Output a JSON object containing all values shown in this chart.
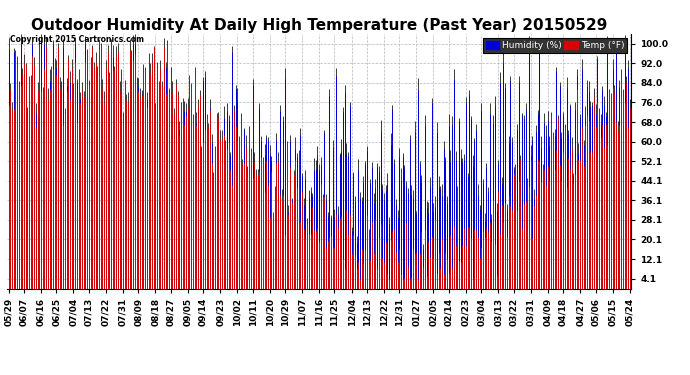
{
  "title": "Outdoor Humidity At Daily High Temperature (Past Year) 20150529",
  "copyright": "Copyright 2015 Cartronics.com",
  "legend_humidity": "Humidity (%)",
  "legend_temp": "Temp (°F)",
  "yticks": [
    4.1,
    12.1,
    20.1,
    28.1,
    36.1,
    44.1,
    52.1,
    60.0,
    68.0,
    76.0,
    84.0,
    92.0,
    100.0
  ],
  "ymin": 0,
  "ymax": 104,
  "background_color": "#ffffff",
  "plot_bg_color": "#ffffff",
  "grid_color": "#b0b0b0",
  "humidity_color": "#0000dd",
  "temp_color": "#dd0000",
  "bar_color": "#1a1a1a",
  "title_fontsize": 11,
  "tick_fontsize": 6.5,
  "figsize": [
    6.9,
    3.75
  ],
  "dpi": 100,
  "x_labels": [
    "05/29",
    "06/07",
    "06/16",
    "06/25",
    "07/04",
    "07/13",
    "07/22",
    "07/31",
    "08/09",
    "08/18",
    "08/27",
    "09/05",
    "09/14",
    "09/23",
    "10/02",
    "10/11",
    "10/20",
    "10/29",
    "11/07",
    "11/16",
    "11/25",
    "12/04",
    "12/13",
    "12/22",
    "12/31",
    "01/27",
    "02/05",
    "02/14",
    "02/23",
    "03/04",
    "03/13",
    "03/22",
    "03/31",
    "04/09",
    "04/18",
    "04/27",
    "05/06",
    "05/15",
    "05/24"
  ]
}
